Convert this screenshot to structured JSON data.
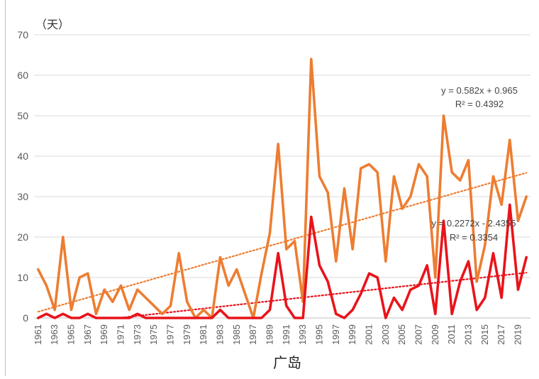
{
  "chart_data": {
    "type": "line",
    "title": "",
    "ylabel": "（天）",
    "xlabel": "广岛",
    "ylim": [
      0,
      70
    ],
    "yticks": [
      0,
      10,
      20,
      30,
      40,
      50,
      60,
      70
    ],
    "grid": true,
    "x": [
      1961,
      1962,
      1963,
      1964,
      1965,
      1966,
      1967,
      1968,
      1969,
      1970,
      1971,
      1972,
      1973,
      1974,
      1975,
      1976,
      1977,
      1978,
      1979,
      1980,
      1981,
      1982,
      1983,
      1984,
      1985,
      1986,
      1987,
      1988,
      1989,
      1990,
      1991,
      1992,
      1993,
      1994,
      1995,
      1996,
      1997,
      1998,
      1999,
      2000,
      2001,
      2002,
      2003,
      2004,
      2005,
      2006,
      2007,
      2008,
      2009,
      2010,
      2011,
      2012,
      2013,
      2014,
      2015,
      2016,
      2017,
      2018,
      2019,
      2020
    ],
    "xtick_labels": [
      "1961",
      "1963",
      "1965",
      "1967",
      "1969",
      "1971",
      "1973",
      "1975",
      "1977",
      "1979",
      "1981",
      "1983",
      "1985",
      "1987",
      "1989",
      "1991",
      "1993",
      "1995",
      "1997",
      "1999",
      "2001",
      "2003",
      "2005",
      "2007",
      "2009",
      "2011",
      "2013",
      "2015",
      "2017",
      "2019"
    ],
    "series": [
      {
        "color": "#ED7D31",
        "values": [
          12,
          8,
          2,
          20,
          2,
          10,
          11,
          1,
          7,
          4,
          8,
          2,
          7,
          5,
          3,
          1,
          3,
          16,
          4,
          0,
          2,
          0,
          15,
          8,
          12,
          6,
          0,
          11,
          21,
          43,
          17,
          19,
          4,
          64,
          35,
          31,
          14,
          32,
          17,
          37,
          38,
          36,
          14,
          35,
          27,
          30,
          38,
          35,
          10,
          50,
          36,
          34,
          39,
          9,
          18,
          35,
          28,
          44,
          24,
          30
        ]
      },
      {
        "color": "#E8141B",
        "values": [
          0,
          1,
          0,
          1,
          0,
          0,
          1,
          0,
          0,
          0,
          0,
          0,
          1,
          0,
          0,
          0,
          0,
          0,
          0,
          0,
          0,
          0,
          2,
          0,
          0,
          0,
          0,
          0,
          2,
          16,
          3,
          0,
          0,
          25,
          13,
          9,
          1,
          0,
          2,
          6,
          11,
          10,
          0,
          5,
          2,
          7,
          8,
          13,
          1,
          24,
          1,
          9,
          14,
          2,
          5,
          16,
          5,
          28,
          7,
          15
        ]
      }
    ],
    "trendlines": [
      {
        "color": "#ED7D31",
        "equation": "y = 0.582x + 0.965",
        "r2": "R² = 0.4392",
        "slope": 0.582,
        "intercept": 0.965
      },
      {
        "color": "#E8141B",
        "equation": "y = 0.2272x - 2.4355",
        "r2": "R² = 0.3354",
        "slope": 0.2272,
        "intercept": -2.4355
      }
    ]
  }
}
